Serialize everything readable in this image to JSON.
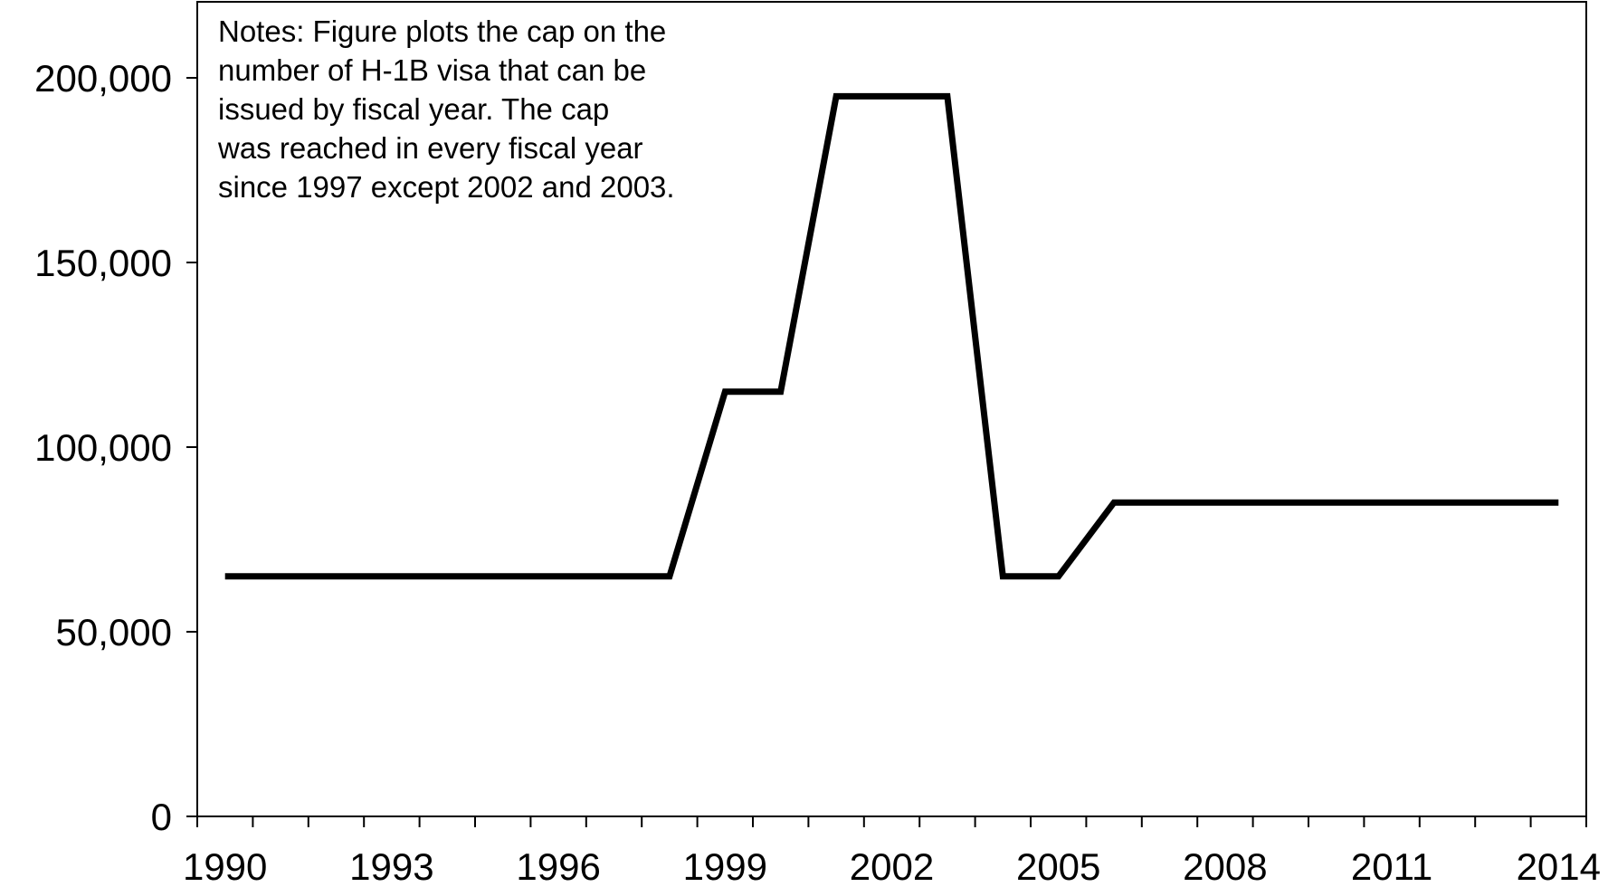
{
  "chart_data": {
    "type": "line",
    "title": "",
    "xlabel": "",
    "ylabel": "",
    "x": [
      1990,
      1991,
      1992,
      1993,
      1994,
      1995,
      1996,
      1997,
      1998,
      1999,
      2000,
      2001,
      2002,
      2003,
      2004,
      2005,
      2006,
      2007,
      2008,
      2009,
      2010,
      2011,
      2012,
      2013,
      2014
    ],
    "series": [
      {
        "values": [
          65000,
          65000,
          65000,
          65000,
          65000,
          65000,
          65000,
          65000,
          65000,
          115000,
          115000,
          195000,
          195000,
          195000,
          65000,
          65000,
          85000,
          85000,
          85000,
          85000,
          85000,
          85000,
          85000,
          85000,
          85000
        ]
      }
    ],
    "xlim": [
      1989.5,
      2014.5
    ],
    "ylim": [
      0,
      200000
    ],
    "x_ticks": [
      "1990",
      "1993",
      "1996",
      "1999",
      "2002",
      "2005",
      "2008",
      "2011",
      "2014"
    ],
    "y_ticks": [
      "0",
      "50,000",
      "100,000",
      "150,000",
      "200,000"
    ],
    "notes": [
      "Notes:  Figure plots the cap on the",
      "number of H-1B visa that can be",
      "issued by fiscal year.  The cap",
      "was reached in every fiscal year",
      "since 1997 except 2002 and 2003."
    ],
    "line_color": "#000000",
    "grid": false,
    "legend": "none"
  }
}
